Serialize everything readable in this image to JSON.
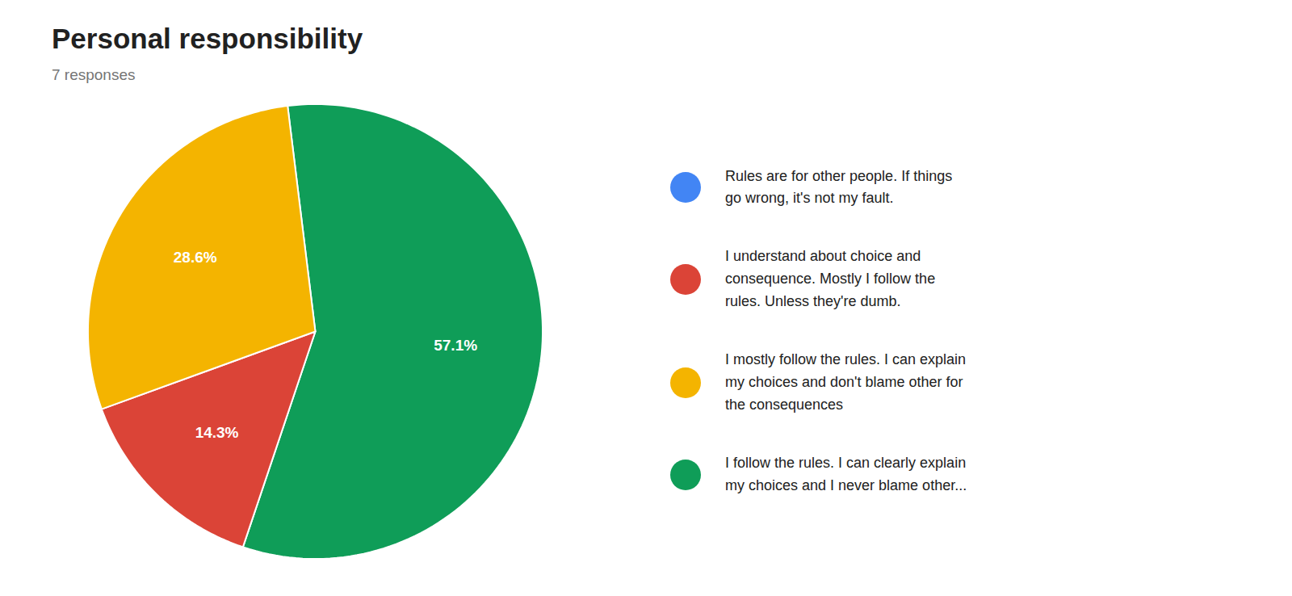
{
  "chart_data": {
    "type": "pie",
    "title": "Personal responsibility",
    "subtitle": "7 responses",
    "values": [
      57.1,
      14.3,
      28.6
    ],
    "value_labels": [
      "57.1%",
      "14.3%",
      "28.6%"
    ],
    "colors": [
      "#0F9D58",
      "#DB4437",
      "#F4B400"
    ],
    "data_labels": true,
    "legend_entries": [
      {
        "name": "Rules are for other people. If things\ngo wrong, it's not my fault.",
        "color": "#4285F4"
      },
      {
        "name": "I understand about choice and\nconsequence. Mostly I follow the\nrules. Unless they're dumb.",
        "color": "#DB4437"
      },
      {
        "name": "I mostly follow the rules. I can explain\nmy choices and don't blame other for\nthe consequences",
        "color": "#F4B400"
      },
      {
        "name": "I follow the rules. I can clearly explain\nmy choices and I never blame other...",
        "color": "#0F9D58"
      }
    ]
  }
}
